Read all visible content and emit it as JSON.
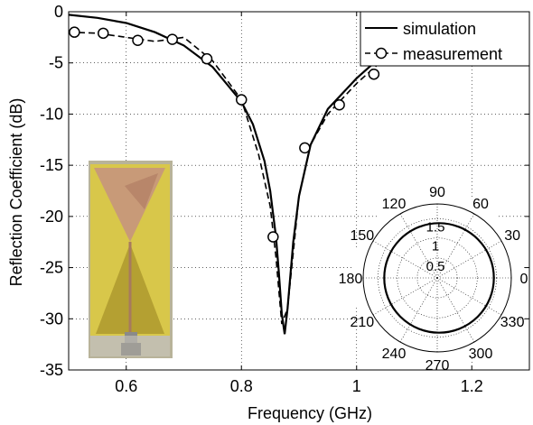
{
  "chart_data": {
    "type": "line",
    "xlabel": "Frequency (GHz)",
    "ylabel": "Reflection Coefficient (dB)",
    "xlim": [
      0.5,
      1.3
    ],
    "ylim": [
      -35,
      0
    ],
    "grid": true,
    "xticks": [
      0.6,
      0.8,
      1,
      1.2
    ],
    "xtick_labels": [
      "0.6",
      "0.8",
      "1",
      "1.2"
    ],
    "yticks": [
      0,
      -5,
      -10,
      -15,
      -20,
      -25,
      -30,
      -35
    ],
    "ytick_labels": [
      "0",
      "-5",
      "-10",
      "-15",
      "-20",
      "-25",
      "-30",
      "-35"
    ],
    "legend": {
      "position": "top-right"
    },
    "series": [
      {
        "name": "simulation",
        "style": "solid",
        "x": [
          0.5,
          0.55,
          0.6,
          0.65,
          0.7,
          0.75,
          0.8,
          0.82,
          0.84,
          0.85,
          0.86,
          0.865,
          0.87,
          0.875,
          0.88,
          0.89,
          0.9,
          0.92,
          0.95,
          1.0,
          1.05,
          1.1,
          1.15
        ],
        "y": [
          -0.3,
          -0.6,
          -1.1,
          -2.0,
          -3.3,
          -5.4,
          -8.8,
          -11.0,
          -14.6,
          -17.5,
          -22.0,
          -25.5,
          -29.5,
          -31.5,
          -29.0,
          -22.5,
          -18.0,
          -13.0,
          -9.5,
          -6.5,
          -4.0,
          -2.2,
          -1.0
        ]
      },
      {
        "name": "measurement",
        "style": "dashed",
        "marker": "circle",
        "x": [
          0.5,
          0.55,
          0.6,
          0.65,
          0.7,
          0.75,
          0.8,
          0.83,
          0.85,
          0.86,
          0.87,
          0.88,
          0.9,
          0.92,
          0.95,
          1.0,
          1.05,
          1.1,
          1.15
        ],
        "y": [
          -2.0,
          -2.1,
          -2.5,
          -2.9,
          -2.5,
          -4.8,
          -8.6,
          -14.0,
          -19.0,
          -24.0,
          -30.5,
          -29.0,
          -18.0,
          -13.0,
          -10.0,
          -7.0,
          -4.5,
          -2.5,
          -1.0
        ],
        "marker_x": [
          0.51,
          0.56,
          0.62,
          0.68,
          0.74,
          0.8,
          0.855,
          0.91,
          0.97,
          1.03,
          1.09,
          1.15
        ],
        "marker_y": [
          -2.0,
          -2.1,
          -2.8,
          -2.7,
          -4.6,
          -8.6,
          -22.0,
          -13.3,
          -9.1,
          -6.1,
          -3.8,
          -1.5
        ]
      }
    ],
    "inset_polar": {
      "radial_ticks": [
        "0.5",
        "1",
        "1.5"
      ],
      "angle_labels": [
        "90",
        "60",
        "30",
        "0",
        "330",
        "300",
        "270",
        "240",
        "210",
        "180",
        "150",
        "120"
      ]
    }
  }
}
